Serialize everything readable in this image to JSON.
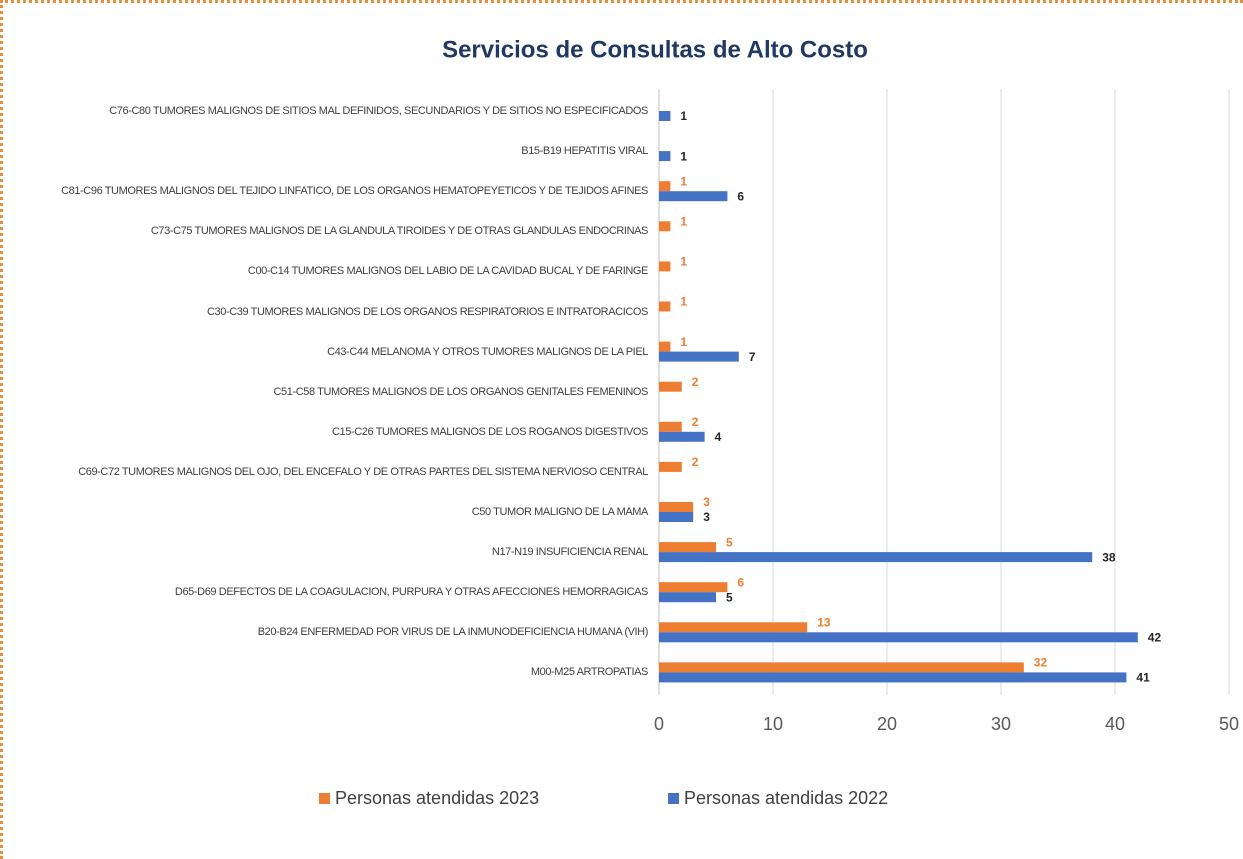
{
  "chart_data": {
    "type": "barh",
    "title": "Servicios de Consultas de Alto Costo",
    "categories": [
      "C76-C80 TUMORES MALIGNOS DE SITIOS MAL DEFINIDOS, SECUNDARIOS Y DE SITIOS NO ESPECIFICADOS",
      "B15-B19 HEPATITIS VIRAL",
      "C81-C96 TUMORES MALIGNOS DEL TEJIDO LINFATICO, DE LOS ORGANOS HEMATOPEYETICOS Y DE TEJIDOS AFINES",
      "C73-C75 TUMORES MALIGNOS DE LA GLANDULA TIROIDES Y DE OTRAS GLANDULAS ENDOCRINAS",
      "C00-C14 TUMORES MALIGNOS DEL LABIO DE LA CAVIDAD BUCAL Y DE FARINGE",
      "C30-C39 TUMORES MALIGNOS DE LOS ORGANOS RESPIRATORIOS E INTRATORACICOS",
      "C43-C44 MELANOMA Y OTROS TUMORES MALIGNOS DE LA PIEL",
      "C51-C58 TUMORES MALIGNOS DE LOS ORGANOS GENITALES FEMENINOS",
      "C15-C26 TUMORES MALIGNOS DE LOS ROGANOS DIGESTIVOS",
      "C69-C72 TUMORES MALIGNOS DEL OJO, DEL ENCEFALO Y DE OTRAS PARTES DEL SISTEMA NERVIOSO CENTRAL",
      "C50       TUMOR MALIGNO DE LA MAMA",
      "N17-N19 INSUFICIENCIA RENAL",
      "D65-D69 DEFECTOS DE LA COAGULACION, PURPURA Y OTRAS AFECCIONES HEMORRAGICAS",
      "B20-B24 ENFERMEDAD POR VIRUS DE LA INMUNODEFICIENCIA HUMANA (VIH)",
      "M00-M25 ARTROPATIAS"
    ],
    "series": [
      {
        "name": "Personas atendidas 2023",
        "color": "#ed7d31",
        "label_color": "#ed7d31",
        "values": [
          null,
          null,
          1,
          1,
          1,
          1,
          1,
          2,
          2,
          2,
          3,
          5,
          6,
          13,
          32
        ]
      },
      {
        "name": "Personas atendidas 2022",
        "color": "#4472c4",
        "label_color": "#262626",
        "values": [
          1,
          1,
          6,
          null,
          null,
          null,
          7,
          null,
          4,
          null,
          3,
          38,
          5,
          42,
          41
        ]
      }
    ],
    "xlim": [
      0,
      50
    ],
    "xticks": [
      0,
      10,
      20,
      30,
      40,
      50
    ],
    "grid": true,
    "legend": "bottom"
  }
}
